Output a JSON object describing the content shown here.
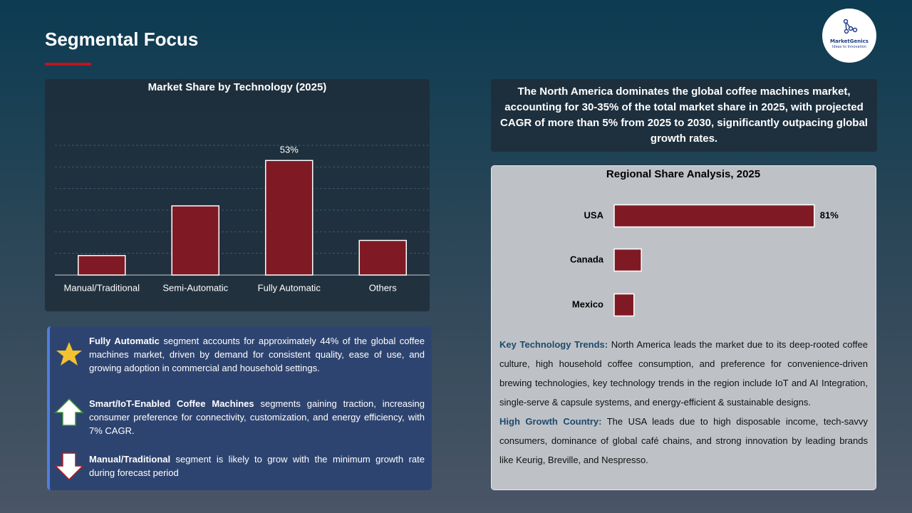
{
  "header": {
    "title": "Segmental Focus",
    "logo_name": "MarketGenics",
    "logo_tagline": "Ideas to Innovation"
  },
  "summary": "The North America dominates the global coffee machines market, accounting for 30-35% of the total market share in 2025, with projected CAGR of more than 5% from 2025 to 2030, significantly outpacing global growth rates.",
  "highlights": [
    {
      "bold": "Fully Automatic",
      "text": " segment accounts for approximately 44% of the global coffee machines market, driven by demand for consistent quality, ease of use, and growing adoption in commercial and household settings."
    },
    {
      "bold": "Smart/IoT-Enabled Coffee Machines",
      "text": " segments gaining traction, increasing consumer preference for connectivity, customization, and energy efficiency, with 7% CAGR."
    },
    {
      "bold": "Manual/Traditional",
      "text": " segment is likely to grow with the minimum growth rate during forecast period"
    }
  ],
  "notes": [
    {
      "label": "Key Technology Trends:",
      "text": " North America leads the market due to its deep-rooted coffee culture, high household coffee consumption, and preference for convenience-driven brewing technologies, key technology trends in the region include IoT and AI Integration, single-serve & capsule systems, and energy-efficient & sustainable designs."
    },
    {
      "label": "High Growth Country:",
      "text": " The USA leads due to high disposable income, tech-savvy consumers, dominance of global café chains, and strong innovation by leading brands like Keurig, Breville, and Nespresso."
    }
  ],
  "chart_data": [
    {
      "type": "bar",
      "orientation": "vertical",
      "title": "Market Share by Technology (2025)",
      "categories": [
        "Manual/Traditional",
        "Semi-Automatic",
        "Fully Automatic",
        "Others"
      ],
      "values": [
        9,
        32,
        53,
        16
      ],
      "value_labels": [
        null,
        null,
        "53%",
        null
      ],
      "color": "#7f1a24",
      "ylim": [
        0,
        60
      ],
      "yticks": [
        10,
        20,
        30,
        40,
        50,
        60
      ],
      "grid": true
    },
    {
      "type": "bar",
      "orientation": "horizontal",
      "title": "Regional Share Analysis, 2025",
      "categories": [
        "USA",
        "Canada",
        "Mexico"
      ],
      "values": [
        81,
        11,
        8
      ],
      "value_labels": [
        "81%",
        null,
        null
      ],
      "color": "#7f1a24",
      "xlim": [
        0,
        90
      ],
      "grid": false
    }
  ]
}
